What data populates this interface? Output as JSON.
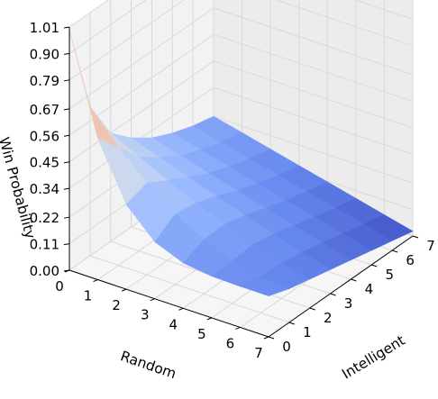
{
  "chart_data": {
    "type": "surface3d",
    "xlabel": "Random",
    "ylabel": "Intelligent",
    "zlabel": "Win Probability",
    "x_ticks": [
      "0",
      "1",
      "2",
      "3",
      "4",
      "5",
      "6",
      "7"
    ],
    "y_ticks": [
      "0",
      "1",
      "2",
      "3",
      "4",
      "5",
      "6",
      "7"
    ],
    "z_ticks": [
      "0.00",
      "0.11",
      "0.22",
      "0.34",
      "0.45",
      "0.56",
      "0.67",
      "0.79",
      "0.90",
      "1.01"
    ],
    "xlim": [
      0,
      7
    ],
    "ylim": [
      0,
      7
    ],
    "zlim": [
      0,
      1.01
    ],
    "grid": true,
    "colormap": "coolwarm",
    "colormap_colors": [
      "#3b4cc0",
      "#6788ee",
      "#9abbff",
      "#c9d7f0",
      "#dddddd",
      "#f7b89c",
      "#e36a53",
      "#b40426"
    ],
    "x": [
      0,
      1,
      2,
      3,
      4,
      5,
      6,
      7
    ],
    "y": [
      0,
      1,
      2,
      3,
      4,
      5,
      6,
      7
    ],
    "z_description": "Win probability as a function of Random (x) and Intelligent (y)",
    "z_at_x0": [
      1.0,
      0.62,
      0.45,
      0.37,
      0.31,
      0.27,
      0.24,
      0.22
    ],
    "z_at_x7": [
      0.17,
      0.14,
      0.12,
      0.1,
      0.08,
      0.06,
      0.04,
      0.02
    ]
  }
}
